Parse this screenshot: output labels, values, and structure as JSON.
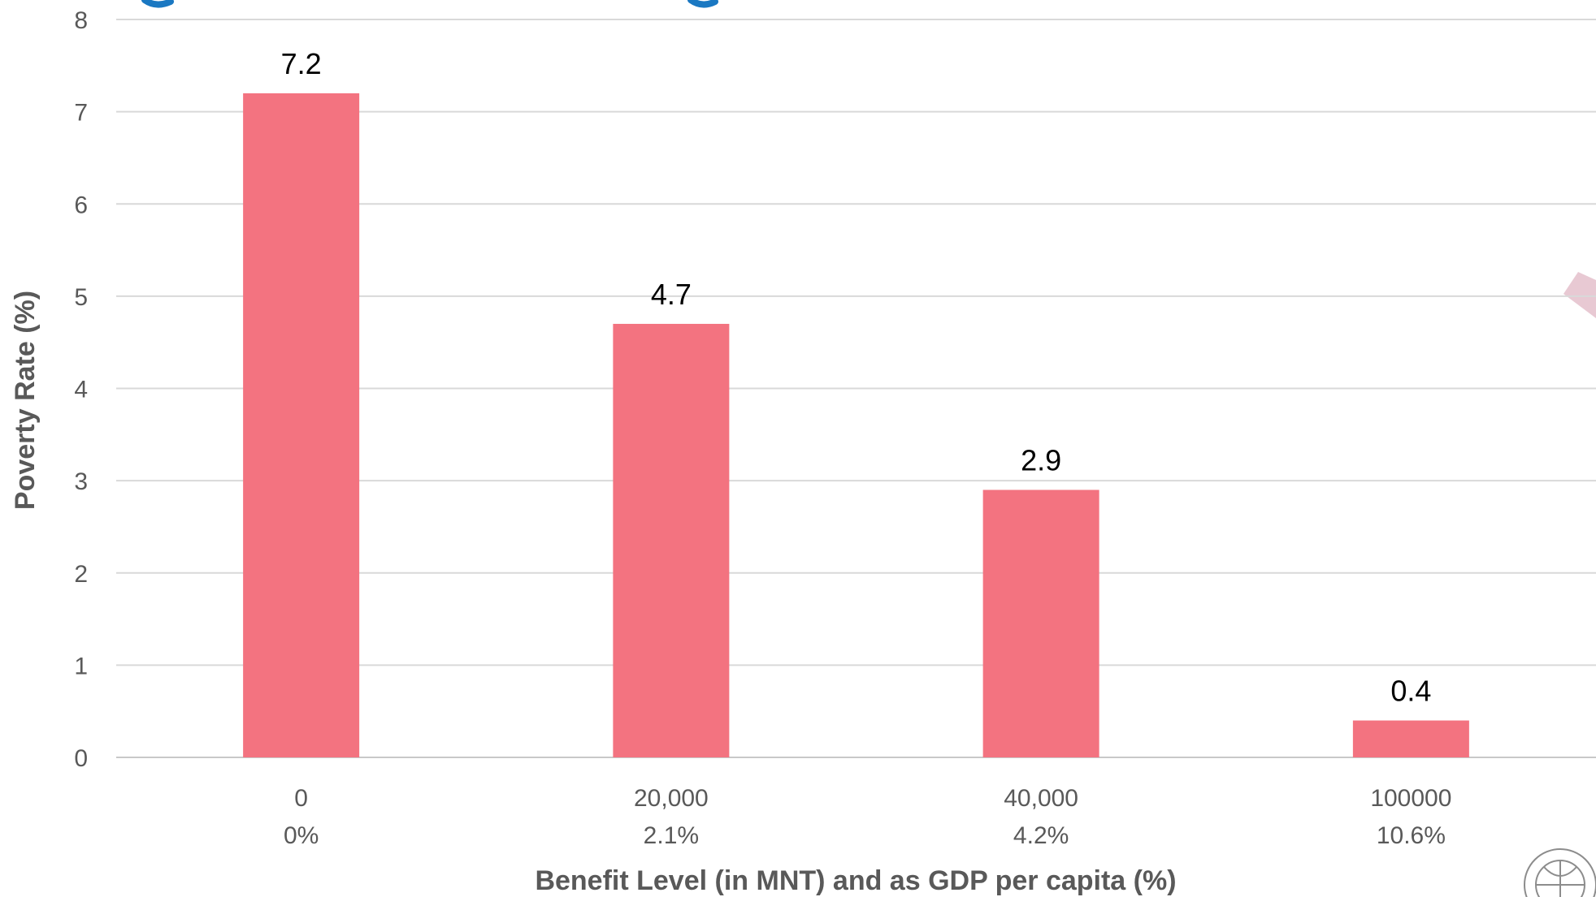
{
  "chart_data": {
    "type": "bar",
    "categories": [
      {
        "level": "0",
        "gdp_share": "0%"
      },
      {
        "level": "20,000",
        "gdp_share": "2.1%"
      },
      {
        "level": "40,000",
        "gdp_share": "4.2%"
      },
      {
        "level": "100000",
        "gdp_share": "10.6%"
      }
    ],
    "values": [
      7.2,
      4.7,
      2.9,
      0.4
    ],
    "data_labels": [
      "7.2",
      "4.7",
      "2.9",
      "0.4"
    ],
    "xlabel": "Benefit Level (in MNT) and as GDP per capita (%)",
    "ylabel": "Poverty Rate (%)",
    "ylim": [
      0,
      8
    ],
    "yticks": [
      0,
      1,
      2,
      3,
      4,
      5,
      6,
      7,
      8
    ],
    "grid": true,
    "colors": {
      "bar": "#f37380",
      "decoration_top": "#1a78c2",
      "decoration_right": "#e8c9d3",
      "emblem": "#8c8c8c"
    }
  }
}
